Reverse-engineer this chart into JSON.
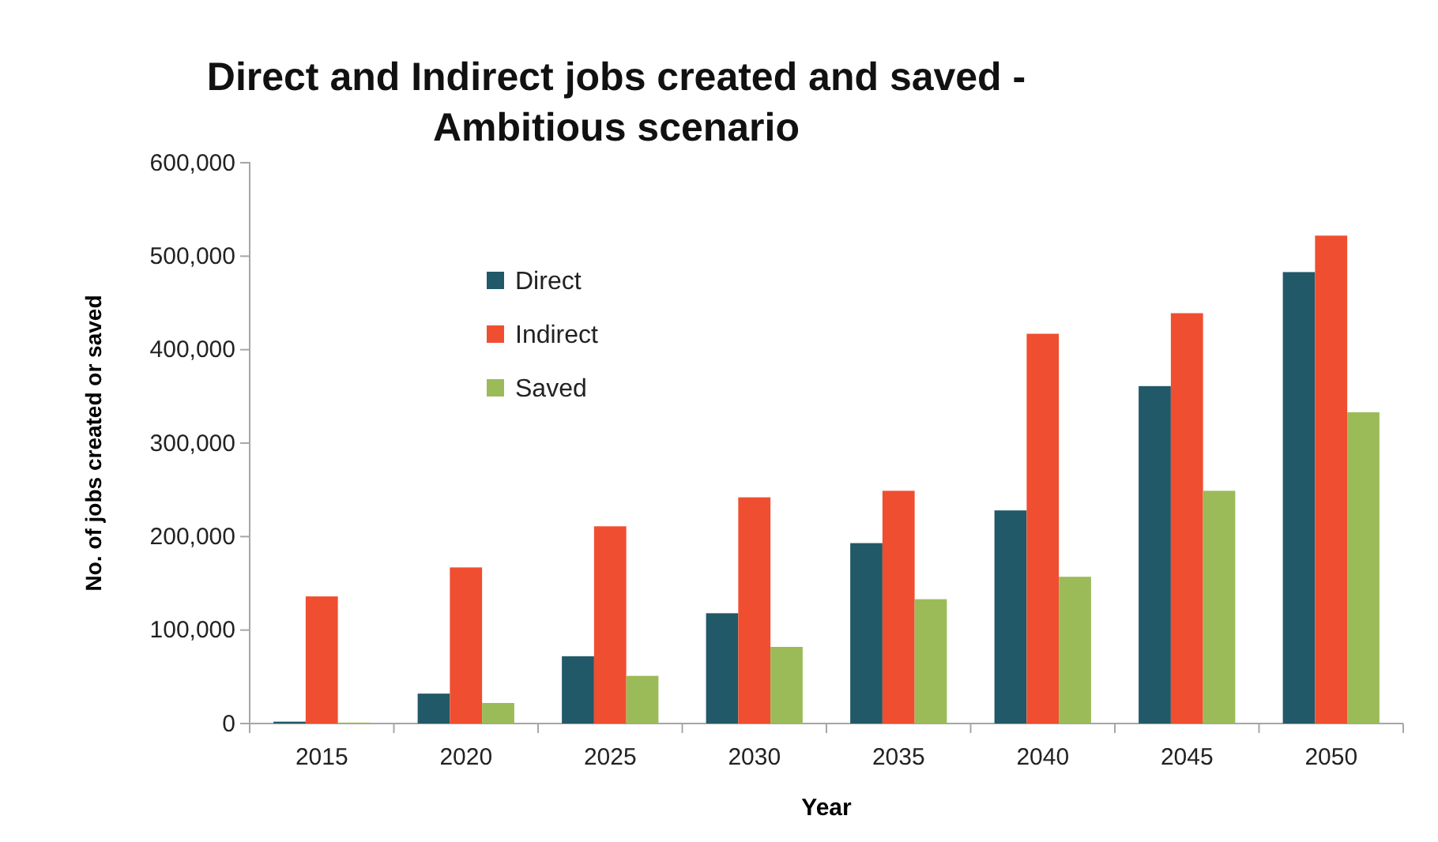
{
  "chart_data": {
    "type": "bar",
    "title": "Direct and Indirect jobs created and saved - Ambitious scenario",
    "xlabel": "Year",
    "ylabel": "No. of jobs created or saved",
    "categories": [
      "2015",
      "2020",
      "2025",
      "2030",
      "2035",
      "2040",
      "2045",
      "2050"
    ],
    "series": [
      {
        "name": "Direct",
        "color": "#215968",
        "values": [
          2000,
          32000,
          72000,
          118000,
          193000,
          228000,
          361000,
          483000
        ]
      },
      {
        "name": "Indirect",
        "color": "#f04e30",
        "values": [
          136000,
          167000,
          211000,
          242000,
          249000,
          417000,
          439000,
          522000
        ]
      },
      {
        "name": "Saved",
        "color": "#9bbb59",
        "values": [
          1000,
          22000,
          51000,
          82000,
          133000,
          157000,
          249000,
          333000
        ]
      }
    ],
    "ylim": [
      0,
      600000
    ],
    "yticks": [
      {
        "value": 0,
        "label": "0"
      },
      {
        "value": 100000,
        "label": "100,000"
      },
      {
        "value": 200000,
        "label": "200,000"
      },
      {
        "value": 300000,
        "label": "300,000"
      },
      {
        "value": 400000,
        "label": "400,000"
      },
      {
        "value": 500000,
        "label": "500,000"
      },
      {
        "value": 600000,
        "label": "600,000"
      }
    ],
    "grid": false,
    "legend": "top left"
  }
}
